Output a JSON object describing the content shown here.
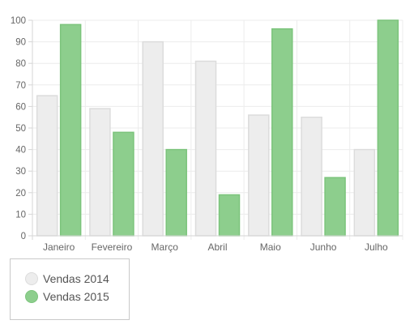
{
  "chart_data": {
    "type": "bar",
    "categories": [
      "Janeiro",
      "Fevereiro",
      "Março",
      "Abril",
      "Maio",
      "Junho",
      "Julho"
    ],
    "series": [
      {
        "name": "Vendas 2014",
        "values": [
          65,
          59,
          90,
          81,
          56,
          55,
          40
        ],
        "fill": "#ededed",
        "stroke": "#dcdcdc"
      },
      {
        "name": "Vendas 2015",
        "values": [
          98,
          48,
          40,
          19,
          96,
          27,
          100
        ],
        "fill": "#8dce8d",
        "stroke": "#7cc47c"
      }
    ],
    "ylim": [
      0,
      100
    ],
    "yticks": [
      0,
      10,
      20,
      30,
      40,
      50,
      60,
      70,
      80,
      90,
      100
    ],
    "grid": true,
    "legend_position": "bottom-left"
  }
}
